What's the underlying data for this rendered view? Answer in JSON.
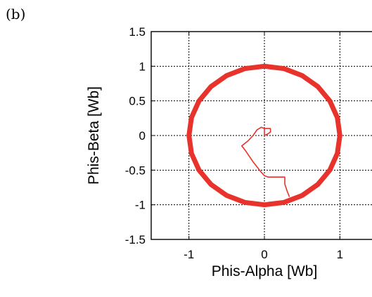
{
  "panel_label": "(b)",
  "chart_data": {
    "type": "line",
    "title": "",
    "xlabel": "Phis-Alpha [Wb]",
    "ylabel": "Phis-Beta [Wb]",
    "xlim": [
      -1.5,
      1.5
    ],
    "ylim": [
      -1.5,
      1.5
    ],
    "xticks": [
      -1,
      0,
      1
    ],
    "xtick_labels": [
      "-1",
      "0",
      "1"
    ],
    "yticks": [
      1.5,
      1,
      0.5,
      0,
      -0.5,
      -1,
      -1.5
    ],
    "ytick_labels": [
      "1.5",
      "1",
      "0.5",
      "0",
      "-0.5",
      "-1",
      "-1.5"
    ],
    "grid": true,
    "grid_style": "dotted",
    "series": [
      {
        "color": "#e8322c",
        "style": "thick",
        "x": [
          1.0,
          0.966,
          0.866,
          0.707,
          0.5,
          0.259,
          0.0,
          -0.259,
          -0.5,
          -0.707,
          -0.866,
          -0.966,
          -1.0,
          -0.966,
          -0.866,
          -0.707,
          -0.5,
          -0.259,
          0.0,
          0.259,
          0.5,
          0.707,
          0.866,
          0.966,
          1.0
        ],
        "y": [
          0.0,
          0.259,
          0.5,
          0.707,
          0.866,
          0.966,
          1.0,
          0.966,
          0.866,
          0.707,
          0.5,
          0.259,
          0.0,
          -0.259,
          -0.5,
          -0.707,
          -0.866,
          -0.966,
          -1.0,
          -0.966,
          -0.866,
          -0.707,
          -0.5,
          -0.259,
          0.0
        ]
      },
      {
        "color": "#e8322c",
        "style": "thin",
        "x": [
          0.0,
          0.0,
          -0.04,
          -0.1,
          -0.15,
          -0.22,
          -0.3,
          -0.25,
          -0.2,
          -0.15,
          -0.1,
          -0.05,
          0.0,
          0.05,
          0.1,
          0.15,
          0.2,
          0.27,
          0.27,
          0.3,
          0.33
        ],
        "y": [
          0.0,
          0.1,
          0.12,
          0.08,
          0.0,
          -0.08,
          -0.15,
          -0.22,
          -0.3,
          -0.38,
          -0.45,
          -0.52,
          -0.58,
          -0.6,
          -0.6,
          -0.6,
          -0.6,
          -0.6,
          -0.7,
          -0.8,
          -0.88
        ]
      },
      {
        "color": "#e8322c",
        "style": "thin",
        "x": [
          0.0,
          0.08,
          0.08,
          0.04,
          0.0
        ],
        "y": [
          0.1,
          0.1,
          0.05,
          0.02,
          0.0
        ]
      }
    ]
  }
}
